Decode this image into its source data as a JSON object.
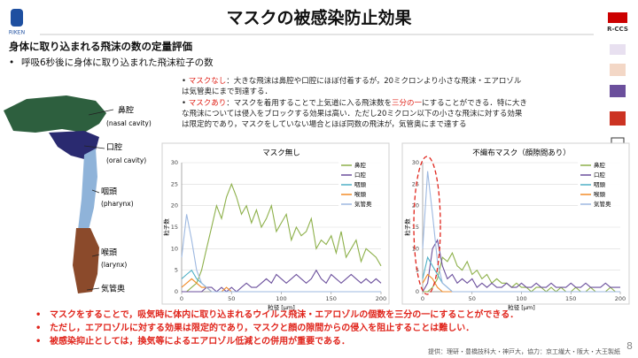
{
  "header": {
    "title": "マスクの被感染防止効果",
    "logo_left": "RIKEN",
    "logo_right": "R-CCS"
  },
  "heading": "身体に取り込まれる飛沫の数の定量評価",
  "subpoint": "呼吸6秒後に身体に取り込まれた飛沫粒子の数",
  "notes": [
    {
      "label": "マスクなし",
      "text": "：大きな飛沫は鼻腔や口腔にほぼ付着するが，20ミクロンより小さな飛沫・エアロゾルは気管奥にまで到達する．"
    },
    {
      "label": "マスクあり",
      "text_a": "：マスクを着用することで上気道に入る飛沫数を",
      "highlight": "三分の一",
      "text_b": "にすることができる．特に大きな飛沫については侵入をブロックする効果は高い．ただし20ミクロン以下の小さな飛沫に対する効果は限定的であり，マスクをしていない場合とほぼ同数の飛沫が，気管奥にまで達する"
    }
  ],
  "anatomy": [
    {
      "name": "鼻腔",
      "en": "(nasal cavity)"
    },
    {
      "name": "口腔",
      "en": "(oral cavity)"
    },
    {
      "name": "咽頭",
      "en": "(pharynx)"
    },
    {
      "name": "喉頭",
      "en": "(larynx)"
    },
    {
      "name": "気管奥"
    }
  ],
  "chart_data": [
    {
      "type": "line",
      "title": "マスク無し",
      "x_label": "粒径 [μm]",
      "y_label": "粒子数",
      "xlim": [
        0,
        200
      ],
      "xticks": [
        0,
        50,
        100,
        150,
        200
      ],
      "ylim": [
        0,
        30
      ],
      "yticks": [
        0,
        5,
        10,
        15,
        20,
        25,
        30
      ],
      "grid": true,
      "x": [
        0,
        5,
        10,
        15,
        20,
        25,
        30,
        35,
        40,
        45,
        50,
        55,
        60,
        65,
        70,
        75,
        80,
        85,
        90,
        95,
        100,
        105,
        110,
        115,
        120,
        125,
        130,
        135,
        140,
        145,
        150,
        155,
        160,
        165,
        170,
        175,
        180,
        185,
        190,
        195,
        200
      ],
      "series": [
        {
          "name": "鼻腔",
          "color": "#8db04a",
          "values": [
            0,
            0,
            1,
            2,
            5,
            10,
            15,
            20,
            17,
            22,
            25,
            22,
            18,
            20,
            16,
            19,
            15,
            17,
            20,
            14,
            16,
            18,
            12,
            15,
            13,
            14,
            17,
            10,
            12,
            11,
            13,
            9,
            14,
            8,
            10,
            12,
            7,
            10,
            9,
            8,
            6
          ]
        },
        {
          "name": "口腔",
          "color": "#6b4f9c",
          "values": [
            0,
            0,
            0,
            0,
            0,
            1,
            1,
            0,
            1,
            0,
            1,
            0,
            1,
            2,
            1,
            1,
            2,
            3,
            2,
            4,
            3,
            2,
            3,
            4,
            3,
            2,
            3,
            5,
            3,
            2,
            4,
            3,
            2,
            3,
            4,
            3,
            2,
            3,
            2,
            3,
            2
          ]
        },
        {
          "name": "咽頭",
          "color": "#4fb0c6",
          "values": [
            3,
            4,
            5,
            3,
            2,
            1,
            0,
            0,
            0,
            0,
            0,
            0,
            0,
            0,
            0,
            0,
            0,
            0,
            0,
            0,
            0,
            0,
            0,
            0,
            0,
            0,
            0,
            0,
            0,
            0,
            0,
            0,
            0,
            0,
            0,
            0,
            0,
            0,
            0,
            0,
            0
          ]
        },
        {
          "name": "喉頭",
          "color": "#f28c28",
          "values": [
            1,
            2,
            3,
            2,
            1,
            1,
            0,
            0,
            0,
            1,
            0,
            0,
            0,
            0,
            0,
            0,
            0,
            0,
            0,
            0,
            0,
            0,
            0,
            0,
            0,
            0,
            0,
            0,
            0,
            0,
            0,
            0,
            0,
            0,
            0,
            0,
            0,
            0,
            0,
            0,
            0
          ]
        },
        {
          "name": "気管奥",
          "color": "#9db8e0",
          "values": [
            8,
            18,
            12,
            5,
            2,
            1,
            0,
            0,
            0,
            0,
            0,
            0,
            0,
            0,
            0,
            0,
            0,
            0,
            0,
            0,
            0,
            0,
            0,
            0,
            0,
            0,
            0,
            0,
            0,
            0,
            0,
            0,
            0,
            0,
            0,
            0,
            0,
            0,
            0,
            0,
            0
          ]
        }
      ]
    },
    {
      "type": "line",
      "title": "不織布マスク（顔隙間あり）",
      "x_label": "粒径 [μm]",
      "y_label": "粒子数",
      "xlim": [
        0,
        200
      ],
      "xticks": [
        0,
        50,
        100,
        150,
        200
      ],
      "ylim": [
        0,
        30
      ],
      "yticks": [
        0,
        5,
        10,
        15,
        20,
        25,
        30
      ],
      "grid": true,
      "x": [
        0,
        5,
        10,
        15,
        20,
        25,
        30,
        35,
        40,
        45,
        50,
        55,
        60,
        65,
        70,
        75,
        80,
        85,
        90,
        95,
        100,
        105,
        110,
        115,
        120,
        125,
        130,
        135,
        140,
        145,
        150,
        155,
        160,
        165,
        170,
        175,
        180,
        185,
        190,
        195,
        200
      ],
      "series": [
        {
          "name": "鼻腔",
          "color": "#8db04a",
          "values": [
            0,
            0,
            1,
            3,
            8,
            7,
            9,
            6,
            5,
            7,
            4,
            5,
            3,
            4,
            2,
            3,
            2,
            2,
            1,
            2,
            1,
            1,
            0,
            1,
            1,
            0,
            1,
            0,
            1,
            0,
            0,
            1,
            0,
            0,
            1,
            0,
            0,
            0,
            1,
            0,
            0
          ]
        },
        {
          "name": "口腔",
          "color": "#6b4f9c",
          "values": [
            0,
            2,
            10,
            12,
            6,
            3,
            4,
            2,
            3,
            2,
            3,
            1,
            2,
            1,
            2,
            1,
            1,
            2,
            1,
            1,
            2,
            1,
            1,
            2,
            1,
            1,
            2,
            1,
            1,
            1,
            2,
            1,
            1,
            2,
            1,
            1,
            1,
            2,
            1,
            1,
            1
          ]
        },
        {
          "name": "咽頭",
          "color": "#4fb0c6",
          "values": [
            3,
            8,
            6,
            4,
            2,
            1,
            0,
            0,
            0,
            0,
            0,
            0,
            0,
            0,
            0,
            0,
            0,
            0,
            0,
            0,
            0,
            0,
            0,
            0,
            0,
            0,
            0,
            0,
            0,
            0,
            0,
            0,
            0,
            0,
            0,
            0,
            0,
            0,
            0,
            0,
            0
          ]
        },
        {
          "name": "喉頭",
          "color": "#f28c28",
          "values": [
            2,
            4,
            3,
            1,
            0,
            0,
            0,
            0,
            0,
            0,
            0,
            0,
            0,
            0,
            0,
            0,
            0,
            0,
            0,
            0,
            0,
            0,
            0,
            0,
            0,
            0,
            0,
            0,
            0,
            0,
            0,
            0,
            0,
            0,
            0,
            0,
            0,
            0,
            0,
            0,
            0
          ]
        },
        {
          "name": "気管奥",
          "color": "#9db8e0",
          "values": [
            10,
            28,
            18,
            7,
            2,
            1,
            0,
            0,
            0,
            0,
            0,
            0,
            0,
            0,
            0,
            0,
            0,
            0,
            0,
            0,
            0,
            0,
            0,
            0,
            0,
            0,
            0,
            0,
            0,
            0,
            0,
            0,
            0,
            0,
            0,
            0,
            0,
            0,
            0,
            0,
            0
          ]
        }
      ]
    }
  ],
  "conclusions": [
    "マスクをすることで，吸気時に体内に取り込まれるウイルス飛沫・エアロゾルの個数を三分の一にすることができる．",
    "ただし，エアロゾルに対する効果は限定的であり，マスクと顔の隙間からの侵入を阻止することは難しい．",
    "被感染抑止としては，換気等によるエアロゾル低減との併用が重要である．"
  ],
  "credit": "提供：理研・豊橋技科大・神戸大，協力：京工繊大・阪大・大王製紙",
  "page_number": "8"
}
